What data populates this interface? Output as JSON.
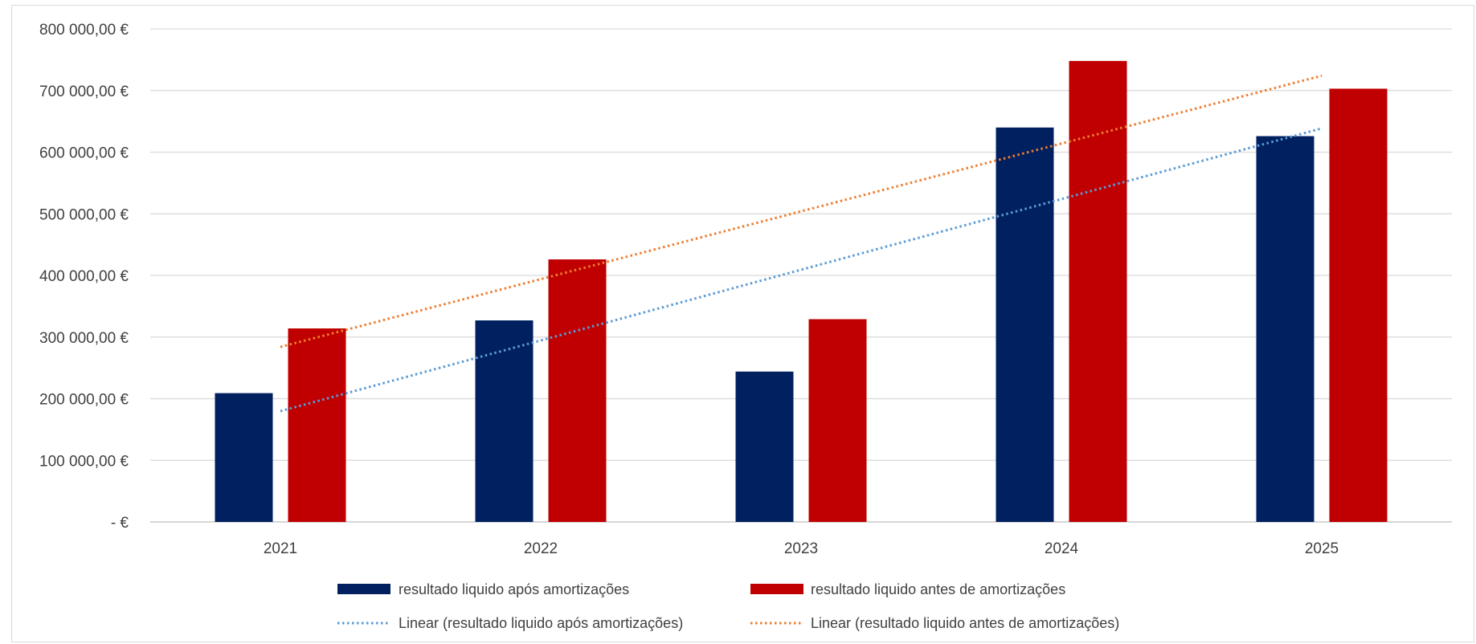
{
  "chart_data": {
    "type": "bar",
    "categories": [
      "2021",
      "2022",
      "2023",
      "2024",
      "2025"
    ],
    "series": [
      {
        "name": "resultado liquido após amortizações",
        "color": "#002060",
        "values": [
          209000,
          327000,
          244000,
          640000,
          626000
        ]
      },
      {
        "name": "resultado liquido antes de amortizações",
        "color": "#c00000",
        "values": [
          314000,
          426000,
          329000,
          748000,
          703000
        ]
      }
    ],
    "trendlines": [
      {
        "name": "Linear (resultado liquido após amortizações)",
        "series_index": 0,
        "color": "#5b9bd5",
        "style": "dotted",
        "type": "linear"
      },
      {
        "name": "Linear (resultado liquido antes de amortizações)",
        "series_index": 1,
        "color": "#ed7d31",
        "style": "dotted",
        "type": "linear"
      }
    ],
    "y_ticks": [
      {
        "value": 0,
        "label": "-  €"
      },
      {
        "value": 100000,
        "label": "100 000,00 €"
      },
      {
        "value": 200000,
        "label": "200 000,00 €"
      },
      {
        "value": 300000,
        "label": "300 000,00 €"
      },
      {
        "value": 400000,
        "label": "400 000,00 €"
      },
      {
        "value": 500000,
        "label": "500 000,00 €"
      },
      {
        "value": 600000,
        "label": "600 000,00 €"
      },
      {
        "value": 700000,
        "label": "700 000,00 €"
      },
      {
        "value": 800000,
        "label": "800 000,00 €"
      }
    ],
    "ylim": [
      0,
      800000
    ],
    "grid": true,
    "legend_position": "bottom"
  }
}
